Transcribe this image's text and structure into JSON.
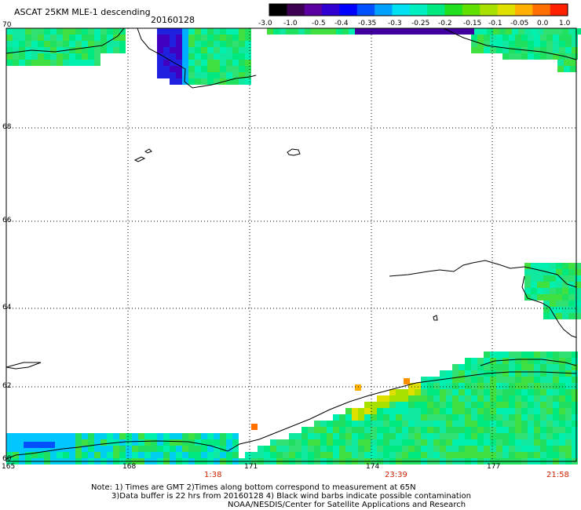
{
  "title": "ASCAT 25KM MLE-1 descending",
  "date": "20160128",
  "colorbar": {
    "labels": [
      "-3.0",
      "-1.0",
      "-0.5",
      "-0.4",
      "-0.35",
      "-0.3",
      "-0.25",
      "-0.2",
      "-0.15",
      "-0.1",
      "-0.05",
      "0.0",
      "1.0"
    ],
    "colors": [
      "#000000",
      "#3c0050",
      "#5a00a0",
      "#3000d0",
      "#0000ff",
      "#0050ff",
      "#00a0ff",
      "#00e0f0",
      "#00f0c0",
      "#00e880",
      "#20e020",
      "#60e000",
      "#a8e000",
      "#e0e000",
      "#ffb000",
      "#ff7000",
      "#ff2000"
    ]
  },
  "lat_labels": [
    "70",
    "68",
    "66",
    "64",
    "62",
    "60"
  ],
  "lon_labels": [
    "165",
    "168",
    "171",
    "174",
    "177"
  ],
  "time_labels": [
    "1:38",
    "23:39",
    "21:58"
  ],
  "notes": [
    "Note: 1) Times are GMT 2)Times along bottom correspond to measurement at 65N",
    "3)Data buffer is 22 hrs from 20160128 4) Black wind barbs indicate possible contamination",
    "NOAA/NESDIS/Center for Satellite Applications and Research"
  ]
}
